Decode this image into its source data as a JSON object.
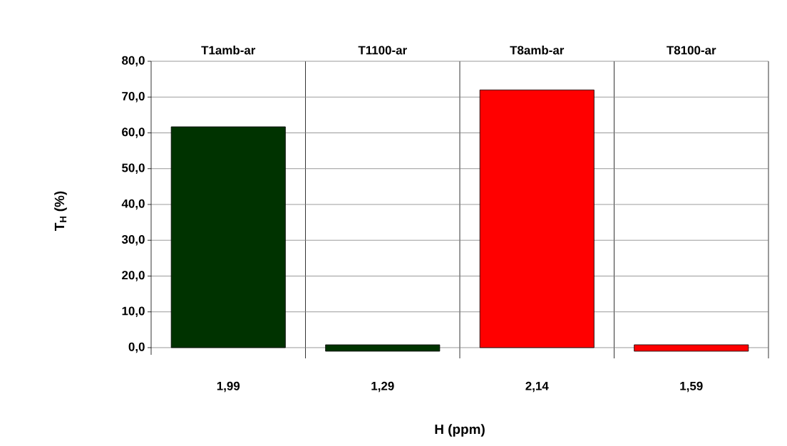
{
  "chart_data": {
    "type": "bar",
    "xlabel": "H (ppm)",
    "ylabel": "T$_{H}$ (%)",
    "categories": [
      "1,99",
      "1,29",
      "2,14",
      "1,59"
    ],
    "values": [
      61.7,
      1.8,
      72.0,
      1.8
    ],
    "base": [
      0,
      -1,
      0,
      -1
    ],
    "colors": [
      "#003300",
      "#003300",
      "#ff0000",
      "#ff0000"
    ],
    "annotations": [
      "T1amb-ar",
      "T1100-ar",
      "T8amb-ar",
      "T8100-ar"
    ],
    "ylim": [
      -2,
      80
    ],
    "yticks": [
      {
        "value": 0,
        "label": "0,0"
      },
      {
        "value": 10,
        "label": "10,0"
      },
      {
        "value": 20,
        "label": "20,0"
      },
      {
        "value": 30,
        "label": "30,0"
      },
      {
        "value": 40,
        "label": "40,0"
      },
      {
        "value": 50,
        "label": "50,0"
      },
      {
        "value": 60,
        "label": "60,0"
      },
      {
        "value": 70,
        "label": "70,0"
      },
      {
        "value": 80,
        "label": "80,0"
      }
    ],
    "grid": true
  }
}
